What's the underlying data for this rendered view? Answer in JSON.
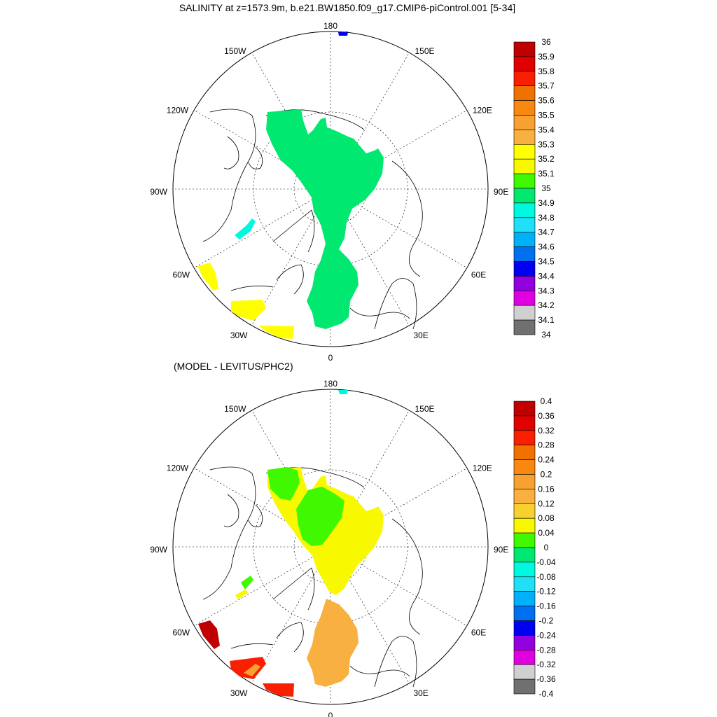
{
  "chart_data": [
    {
      "type": "heatmap",
      "projection": "north polar stereographic",
      "title": "SALINITY at z=1573.9m, b.e21.BW1850.f09_g17.CMIP6-piControl.001 [5-34]",
      "longitude_labels": [
        "180",
        "150E",
        "120E",
        "90E",
        "60E",
        "30E",
        "0",
        "30W",
        "60W",
        "90W",
        "120W",
        "150W"
      ],
      "colorbar": {
        "levels": [
          "36",
          "35.9",
          "35.8",
          "35.7",
          "35.6",
          "35.5",
          "35.4",
          "35.3",
          "35.2",
          "35.1",
          "35",
          "34.9",
          "34.8",
          "34.7",
          "34.6",
          "34.5",
          "34.4",
          "34.3",
          "34.2",
          "34.1",
          "34"
        ],
        "colors": [
          "#c00000",
          "#e00000",
          "#f82000",
          "#f07000",
          "#f88810",
          "#f8a030",
          "#f8b040",
          "#ffff00",
          "#f8f800",
          "#40f800",
          "#00e870",
          "#00f8e0",
          "#20e0f8",
          "#00b0f8",
          "#0070f0",
          "#0000f0",
          "#9000e0",
          "#e000e0",
          "#d0d0d0",
          "#707070"
        ]
      },
      "grid": true
    },
    {
      "type": "heatmap",
      "projection": "north polar stereographic",
      "title": "(MODEL - LEVITUS/PHC2)",
      "longitude_labels": [
        "180",
        "150E",
        "120E",
        "90E",
        "60E",
        "30E",
        "0",
        "30W",
        "60W",
        "90W",
        "120W",
        "150W"
      ],
      "colorbar": {
        "levels": [
          "0.4",
          "0.36",
          "0.32",
          "0.28",
          "0.24",
          "0.2",
          "0.16",
          "0.12",
          "0.08",
          "0.04",
          "0",
          "-0.04",
          "-0.08",
          "-0.12",
          "-0.16",
          "-0.2",
          "-0.24",
          "-0.28",
          "-0.32",
          "-0.36",
          "-0.4"
        ],
        "colors": [
          "#c00000",
          "#e00000",
          "#f82000",
          "#f07000",
          "#f88810",
          "#f8a030",
          "#f8b040",
          "#f8d030",
          "#f8f800",
          "#40f800",
          "#00e870",
          "#00f8e0",
          "#20e0f8",
          "#00b0f8",
          "#0070f0",
          "#0000f0",
          "#9000e0",
          "#e000e0",
          "#d0d0d0",
          "#707070"
        ]
      },
      "grid": true
    }
  ]
}
